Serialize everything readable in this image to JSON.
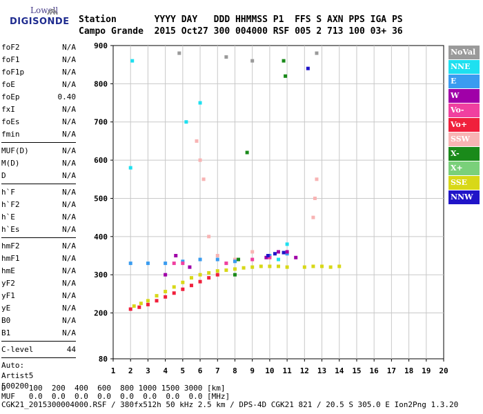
{
  "logo": {
    "line1": "Lowell",
    "line2": "DIGISONDE"
  },
  "header": {
    "labels": "Station       YYYY DAY   DDD HHMMSS P1  FFS S AXN PPS IGA PS",
    "values": "Campo Grande  2015 Oct27 300 004000 RSF 005 2 713 100 03+ 36"
  },
  "params": {
    "group1": [
      {
        "name": "foF2",
        "value": "N/A"
      },
      {
        "name": "foF1",
        "value": "N/A"
      },
      {
        "name": "foF1p",
        "value": "N/A"
      },
      {
        "name": "foE",
        "value": "N/A"
      },
      {
        "name": "foEp",
        "value": "0.40"
      },
      {
        "name": "fxI",
        "value": "N/A"
      },
      {
        "name": "foEs",
        "value": "N/A"
      },
      {
        "name": "fmin",
        "value": "N/A"
      }
    ],
    "group2": [
      {
        "name": "MUF(D)",
        "value": "N/A"
      },
      {
        "name": "M(D)",
        "value": "N/A"
      },
      {
        "name": "D",
        "value": "N/A"
      }
    ],
    "group3": [
      {
        "name": "h`F",
        "value": "N/A"
      },
      {
        "name": "h`F2",
        "value": "N/A"
      },
      {
        "name": "h`E",
        "value": "N/A"
      },
      {
        "name": "h`Es",
        "value": "N/A"
      }
    ],
    "group4": [
      {
        "name": "hmF2",
        "value": "N/A"
      },
      {
        "name": "hmF1",
        "value": "N/A"
      },
      {
        "name": "hmE",
        "value": "N/A"
      },
      {
        "name": "yF2",
        "value": "N/A"
      },
      {
        "name": "yF1",
        "value": "N/A"
      },
      {
        "name": "yE",
        "value": "N/A"
      },
      {
        "name": "B0",
        "value": "N/A"
      },
      {
        "name": "B1",
        "value": "N/A"
      }
    ],
    "clevel": {
      "name": "C-level",
      "value": "44"
    },
    "auto": {
      "line1": "Auto:",
      "line2": "Artist5",
      "line3": "500200"
    }
  },
  "legend": [
    {
      "label": "NoVal",
      "color": "#9a9a9a"
    },
    {
      "label": "NNE",
      "color": "#1ee0f0"
    },
    {
      "label": "E",
      "color": "#3a9cf0"
    },
    {
      "label": "W",
      "color": "#a000a8"
    },
    {
      "label": "Vo-",
      "color": "#f040a0"
    },
    {
      "label": "Vo+",
      "color": "#f0203c"
    },
    {
      "label": "SSW",
      "color": "#f8b4b4"
    },
    {
      "label": "X-",
      "color": "#1a8a1a"
    },
    {
      "label": "X+",
      "color": "#7ad07a"
    },
    {
      "label": "SSE",
      "color": "#d8d818"
    },
    {
      "label": "NNW",
      "color": "#2014c8"
    }
  ],
  "footer": {
    "line1": "D     100  200  400  600  800 1000 1500 3000 [km]",
    "line2": "MUF   0.0  0.0  0.0  0.0  0.0  0.0  0.0  0.0 [MHz]",
    "line3": "CGK21_2015300004000.RSF / 380fx512h 50 kHz 2.5 km / DPS-4D CGK21 821 / 20.5 S 305.0 E Ion2Png 1.3.20"
  },
  "chart_data": {
    "type": "scatter",
    "title": "",
    "xlabel": "",
    "ylabel": "",
    "xlim": [
      1,
      20
    ],
    "ylim": [
      80,
      900
    ],
    "xticks": [
      1,
      2,
      3,
      4,
      5,
      6,
      7,
      8,
      9,
      10,
      11,
      12,
      13,
      14,
      15,
      16,
      17,
      18,
      19,
      20
    ],
    "yticks": [
      80,
      200,
      300,
      400,
      500,
      600,
      700,
      800,
      900
    ],
    "grid": true,
    "series": [
      {
        "color": "#d8d818",
        "points": [
          [
            2.2,
            218
          ],
          [
            2.6,
            225
          ],
          [
            3.0,
            232
          ],
          [
            3.5,
            245
          ],
          [
            4.0,
            256
          ],
          [
            4.5,
            268
          ],
          [
            5.0,
            280
          ],
          [
            5.5,
            292
          ],
          [
            6.0,
            300
          ],
          [
            6.5,
            305
          ],
          [
            7.0,
            310
          ],
          [
            7.5,
            312
          ],
          [
            8.0,
            315
          ],
          [
            8.5,
            318
          ],
          [
            9.0,
            320
          ],
          [
            9.5,
            322
          ],
          [
            10.0,
            322
          ],
          [
            10.5,
            322
          ],
          [
            11.0,
            320
          ],
          [
            12.0,
            320
          ],
          [
            12.5,
            322
          ],
          [
            13.0,
            322
          ],
          [
            13.5,
            320
          ],
          [
            14.0,
            322
          ]
        ]
      },
      {
        "color": "#f0203c",
        "points": [
          [
            2.0,
            210
          ],
          [
            2.5,
            215
          ],
          [
            3.0,
            222
          ],
          [
            3.5,
            232
          ],
          [
            4.0,
            242
          ],
          [
            4.5,
            252
          ],
          [
            5.0,
            262
          ],
          [
            5.5,
            272
          ],
          [
            6.0,
            282
          ],
          [
            6.5,
            292
          ],
          [
            7.0,
            300
          ]
        ]
      },
      {
        "color": "#f8b4b4",
        "points": [
          [
            5.8,
            650
          ],
          [
            6.0,
            600
          ],
          [
            6.2,
            550
          ],
          [
            6.5,
            400
          ],
          [
            7.0,
            350
          ],
          [
            7.5,
            330
          ],
          [
            8.0,
            340
          ],
          [
            9.0,
            360
          ],
          [
            12.5,
            450
          ],
          [
            12.6,
            500
          ],
          [
            12.7,
            550
          ]
        ]
      },
      {
        "color": "#3a9cf0",
        "points": [
          [
            2.0,
            330
          ],
          [
            3.0,
            330
          ],
          [
            4.0,
            330
          ],
          [
            5.0,
            335
          ],
          [
            6.0,
            340
          ],
          [
            7.0,
            340
          ],
          [
            8.0,
            335
          ],
          [
            10.0,
            350
          ],
          [
            11.0,
            355
          ]
        ]
      },
      {
        "color": "#a000a8",
        "points": [
          [
            4.0,
            300
          ],
          [
            4.6,
            350
          ],
          [
            5.4,
            320
          ],
          [
            9.8,
            345
          ],
          [
            10.5,
            360
          ],
          [
            11.0,
            360
          ],
          [
            11.5,
            345
          ]
        ]
      },
      {
        "color": "#1ee0f0",
        "points": [
          [
            2.0,
            580
          ],
          [
            2.1,
            860
          ],
          [
            5.2,
            700
          ],
          [
            6.0,
            750
          ],
          [
            10.5,
            340
          ],
          [
            11.0,
            380
          ]
        ]
      },
      {
        "color": "#1a8a1a",
        "points": [
          [
            8.0,
            300
          ],
          [
            8.2,
            340
          ],
          [
            10.8,
            860
          ],
          [
            10.9,
            820
          ],
          [
            8.7,
            620
          ]
        ]
      },
      {
        "color": "#f040a0",
        "points": [
          [
            4.5,
            330
          ],
          [
            5.0,
            330
          ],
          [
            7.5,
            330
          ],
          [
            9.0,
            340
          ],
          [
            10.0,
            345
          ]
        ]
      },
      {
        "color": "#9a9a9a",
        "points": [
          [
            4.8,
            880
          ],
          [
            7.5,
            870
          ],
          [
            9.0,
            860
          ],
          [
            12.7,
            880
          ]
        ]
      },
      {
        "color": "#2014c8",
        "points": [
          [
            9.9,
            350
          ],
          [
            10.3,
            355
          ],
          [
            10.8,
            358
          ],
          [
            12.2,
            840
          ]
        ]
      }
    ]
  }
}
